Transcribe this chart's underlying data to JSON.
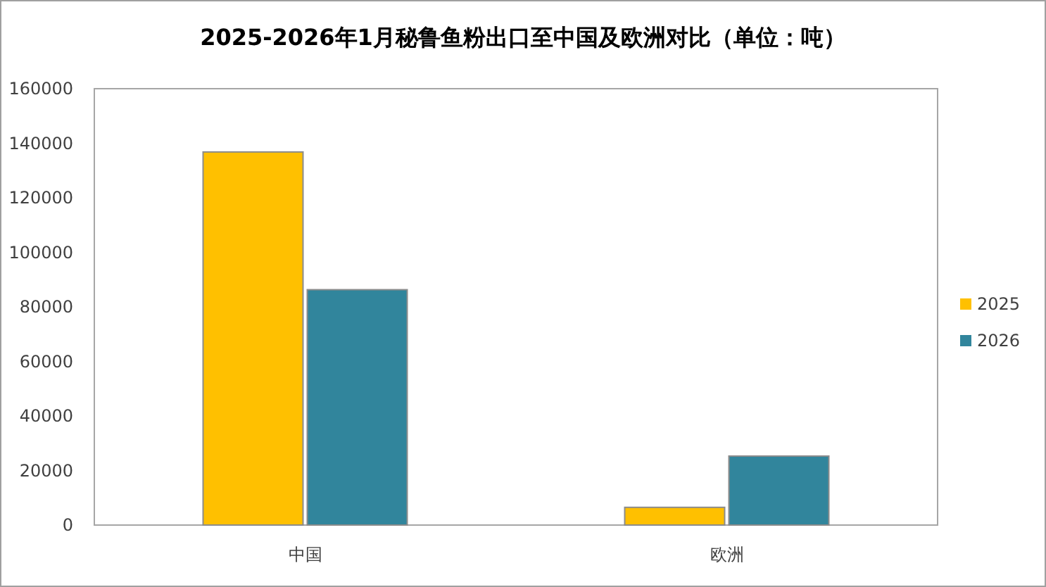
{
  "chart_data": {
    "type": "bar",
    "title": "2025-2026年1月秘鲁鱼粉出口至中国及欧洲对比（单位：吨）",
    "categories": [
      "中国",
      "欧洲"
    ],
    "series": [
      {
        "name": "2025",
        "color": "#ffc000",
        "values": [
          136800,
          6500
        ]
      },
      {
        "name": "2026",
        "color": "#31859c",
        "values": [
          86300,
          25300
        ]
      }
    ],
    "ylim": [
      0,
      160000
    ],
    "yticks": [
      0,
      20000,
      40000,
      60000,
      80000,
      100000,
      120000,
      140000,
      160000
    ],
    "grid": false,
    "legend": "right"
  }
}
